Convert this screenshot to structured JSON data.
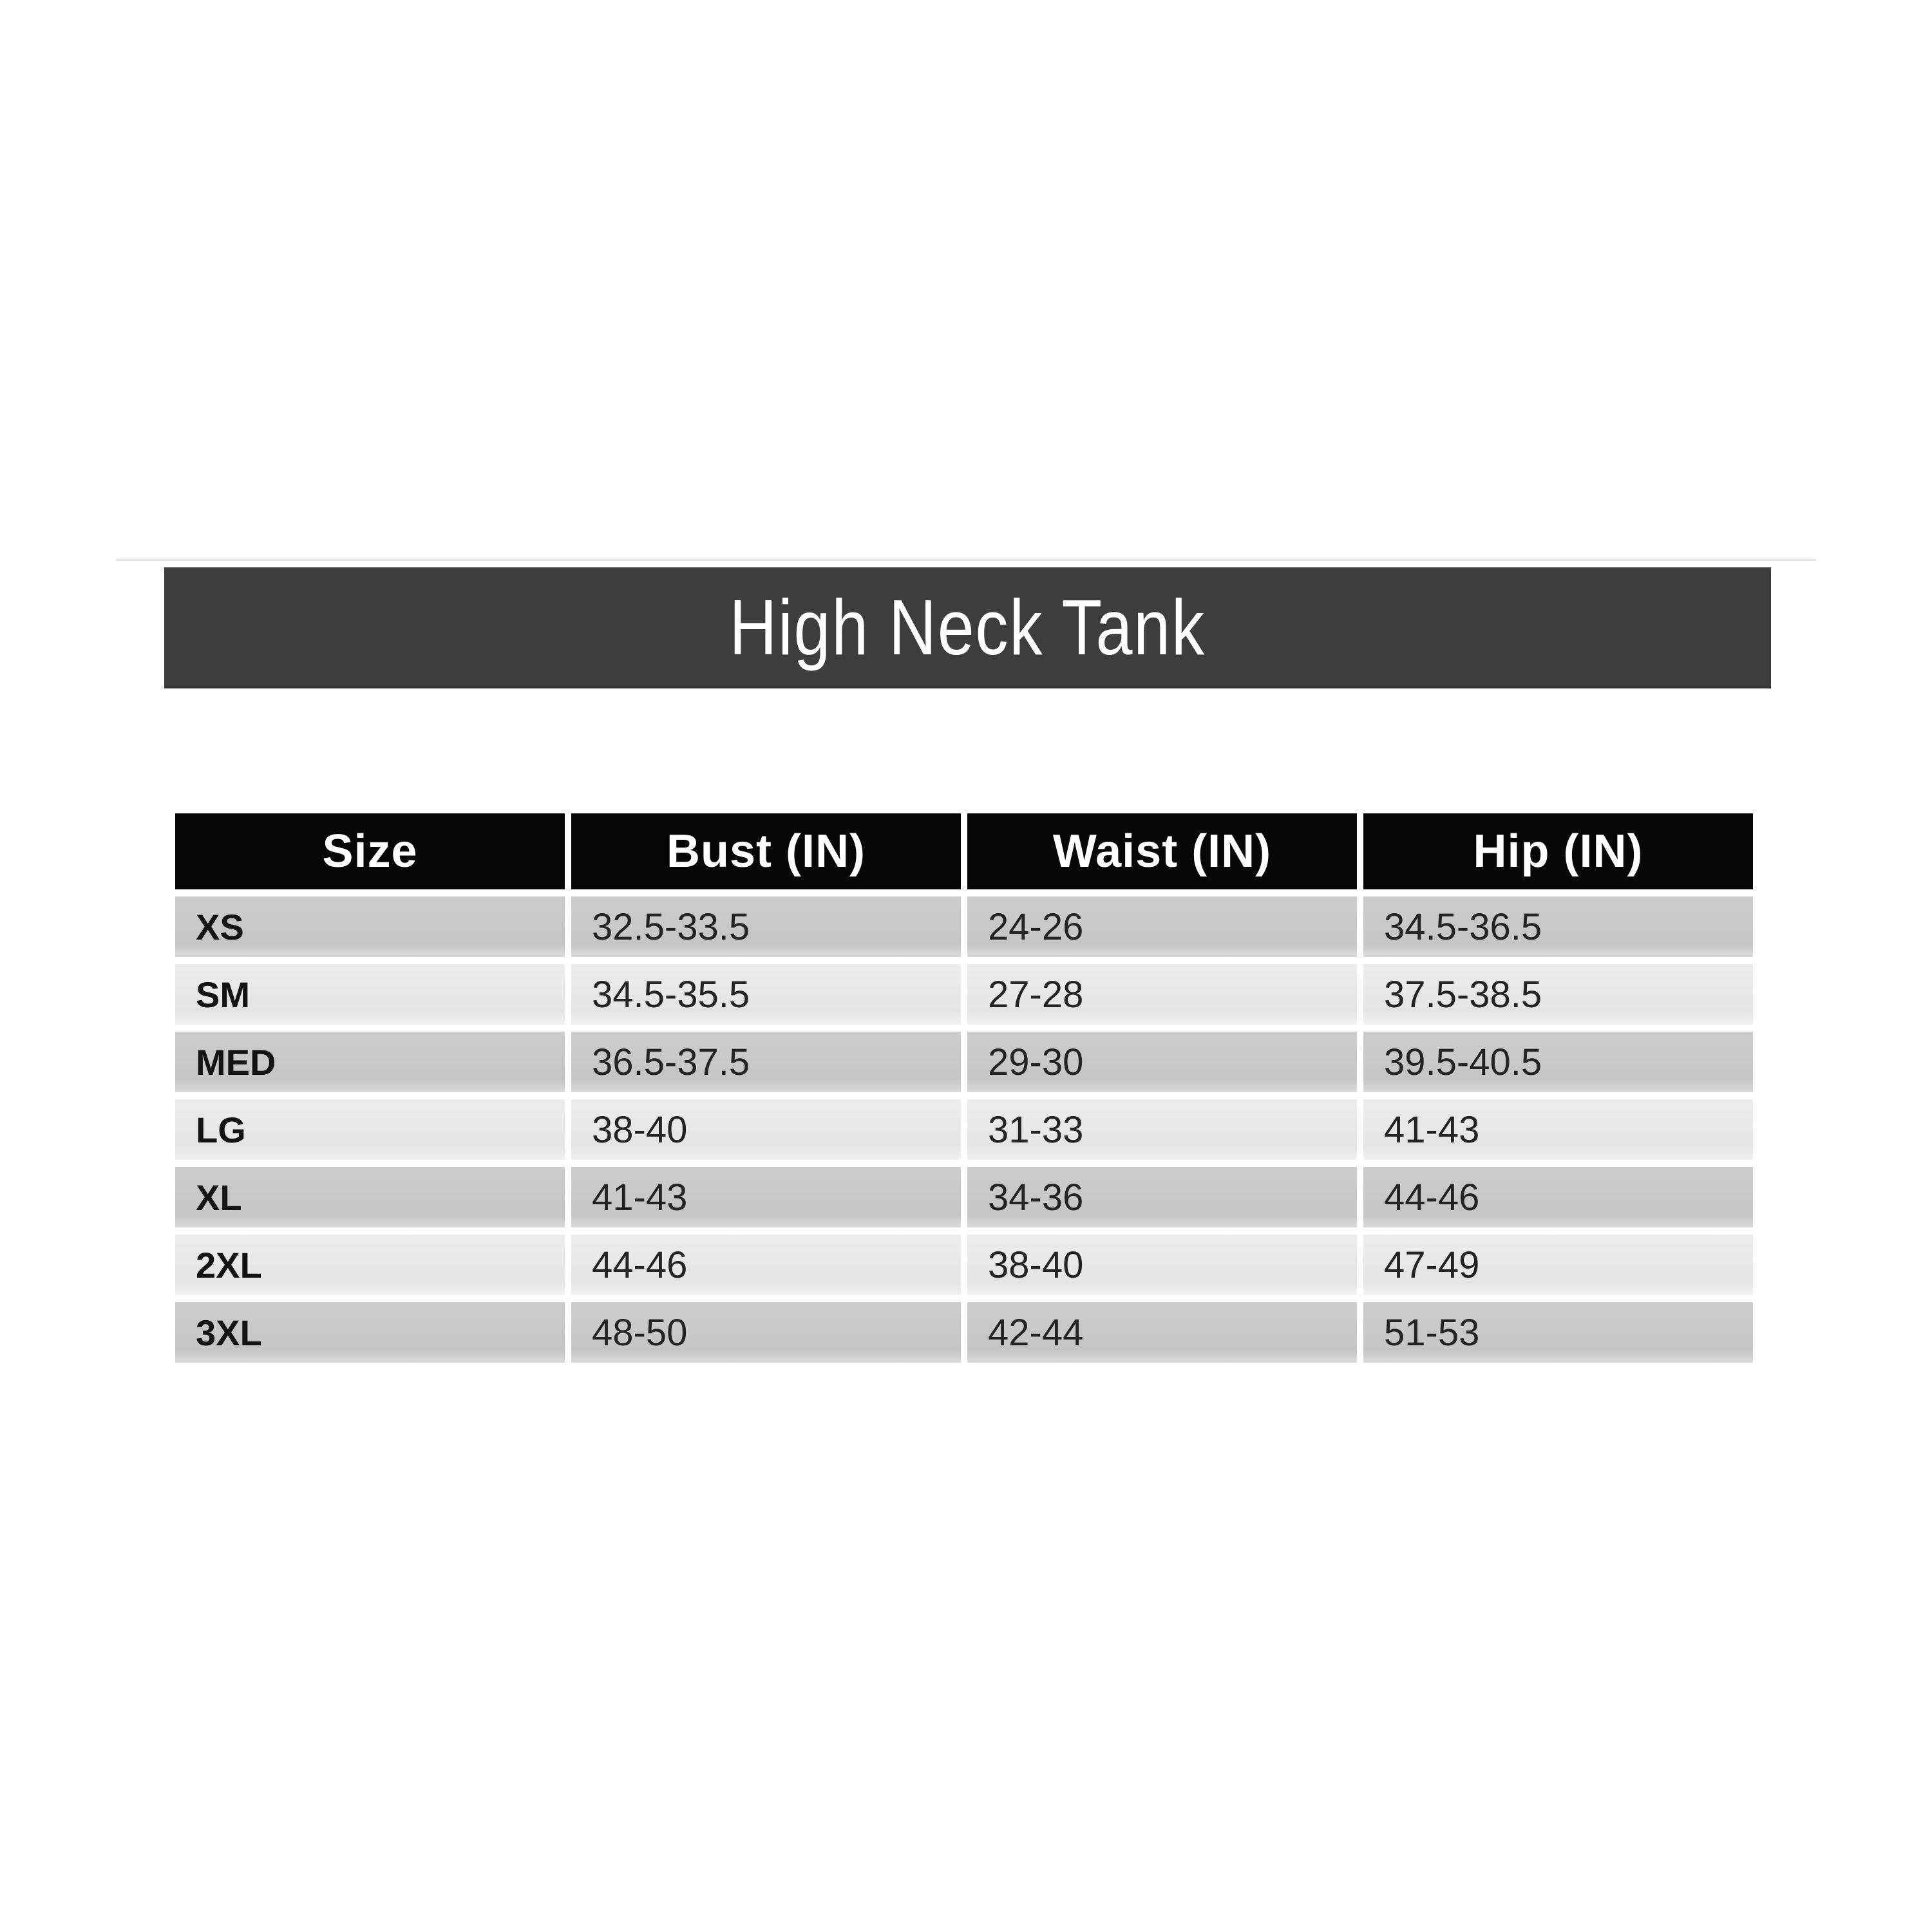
{
  "page": {
    "background_color": "#ffffff",
    "top_rule_color": "#e6e6e6"
  },
  "title_bar": {
    "label": "High Neck Tank",
    "background_color": "#3d3d3d",
    "text_color": "#ffffff"
  },
  "chart_data": {
    "type": "table",
    "title": "High Neck Tank",
    "units": "inches",
    "columns": [
      "Size",
      "Bust (IN)",
      "Waist (IN)",
      "Hip (IN)"
    ],
    "rows": [
      [
        "XS",
        "32.5-33.5",
        "24-26",
        "34.5-36.5"
      ],
      [
        "SM",
        "34.5-35.5",
        "27-28",
        "37.5-38.5"
      ],
      [
        "MED",
        "36.5-37.5",
        "29-30",
        "39.5-40.5"
      ],
      [
        "LG",
        "38-40",
        "31-33",
        "41-43"
      ],
      [
        "XL",
        "41-43",
        "34-36",
        "44-46"
      ],
      [
        "2XL",
        "44-46",
        "38-40",
        "47-49"
      ],
      [
        "3XL",
        "48-50",
        "42-44",
        "51-53"
      ]
    ],
    "layout": {
      "header_background": "#070707",
      "header_text_color": "#ffffff",
      "row_background_dark": "#c9c9c9",
      "row_background_light": "#e8e8e8",
      "cell_text_color": "#232323",
      "row_alternation": "odd rows dark, even rows light, white gaps between cells"
    }
  }
}
